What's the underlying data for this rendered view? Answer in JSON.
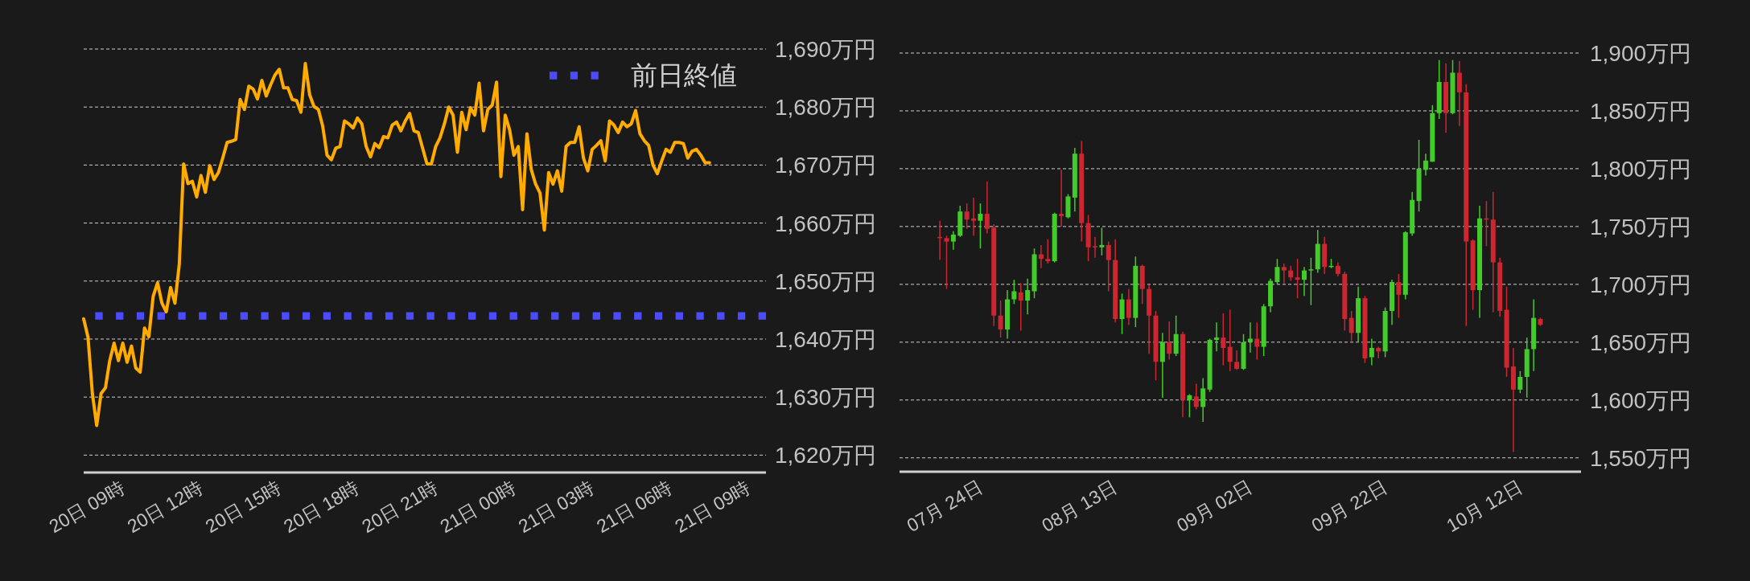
{
  "chart_data": [
    {
      "type": "line",
      "color": "#ffab00",
      "categories": [
        null,
        null,
        null,
        null,
        null,
        null,
        null,
        null,
        null,
        "20日 09時",
        null,
        null,
        null,
        null,
        null,
        null,
        null,
        null,
        null,
        null,
        null,
        null,
        null,
        null,
        null,
        null,
        null,
        "20日 12時",
        null,
        null,
        null,
        null,
        null,
        null,
        null,
        null,
        null,
        null,
        null,
        null,
        null,
        null,
        null,
        null,
        null,
        "20日 15時",
        null,
        null,
        null,
        null,
        null,
        null,
        null,
        null,
        null,
        null,
        null,
        null,
        null,
        null,
        null,
        null,
        null,
        "20日 18時",
        null,
        null,
        null,
        null,
        null,
        null,
        null,
        null,
        null,
        null,
        null,
        null,
        null,
        null,
        null,
        null,
        null,
        "20日 21時",
        null,
        null,
        null,
        null,
        null,
        null,
        null,
        null,
        null,
        null,
        null,
        null,
        null,
        null,
        null,
        null,
        null,
        "21日 00時",
        null,
        null,
        null,
        null,
        null,
        null,
        null,
        null,
        null,
        null,
        null,
        null,
        null,
        null,
        null,
        null,
        null,
        "21日 03時",
        null,
        null,
        null,
        null,
        null,
        null,
        null,
        null,
        null,
        null,
        null,
        null,
        null,
        null,
        null,
        null,
        null,
        "21日 06時",
        null,
        null,
        null,
        null,
        null,
        null,
        null,
        null,
        null,
        null,
        null,
        null,
        null,
        null,
        null,
        null,
        null,
        "21日 09時",
        null,
        null,
        null,
        null
      ],
      "values": [
        1643.5,
        1640.3,
        1630.6,
        1625.1,
        1630.6,
        1631.6,
        1636.3,
        1639.3,
        1636.3,
        1639.3,
        1636.0,
        1638.8,
        1635.0,
        1634.3,
        1641.9,
        1640.4,
        1647.4,
        1649.7,
        1646.2,
        1644.7,
        1648.9,
        1646.2,
        1652.9,
        1670.2,
        1666.8,
        1667.2,
        1664.5,
        1668.2,
        1665.3,
        1669.9,
        1667.5,
        1668.7,
        1671.2,
        1673.9,
        1674.1,
        1674.4,
        1681.3,
        1679.6,
        1683.6,
        1683.1,
        1681.4,
        1684.6,
        1681.9,
        1683.8,
        1685.5,
        1686.5,
        1683.3,
        1683.3,
        1681.3,
        1681.1,
        1679.1,
        1687.5,
        1682.1,
        1680.1,
        1679.6,
        1676.7,
        1671.7,
        1670.9,
        1672.9,
        1673.2,
        1677.6,
        1677.1,
        1676.4,
        1678.1,
        1677.1,
        1673.2,
        1671.4,
        1673.7,
        1673.0,
        1674.9,
        1674.7,
        1676.9,
        1677.4,
        1675.9,
        1677.6,
        1678.9,
        1675.9,
        1675.6,
        1672.9,
        1670.2,
        1670.2,
        1673.2,
        1674.7,
        1677.1,
        1680.0,
        1678.6,
        1672.2,
        1679.1,
        1676.1,
        1679.9,
        1678.6,
        1684.1,
        1675.9,
        1679.6,
        1680.3,
        1684.3,
        1668.0,
        1678.6,
        1676.1,
        1671.7,
        1673.2,
        1662.3,
        1675.4,
        1669.2,
        1666.7,
        1665.2,
        1658.8,
        1668.7,
        1666.7,
        1669.0,
        1665.5,
        1673.2,
        1673.9,
        1673.9,
        1676.6,
        1671.2,
        1669.0,
        1672.7,
        1673.4,
        1674.2,
        1670.7,
        1677.6,
        1676.9,
        1675.6,
        1677.4,
        1676.6,
        1677.1,
        1679.4,
        1675.4,
        1674.2,
        1673.4,
        1670.0,
        1668.5,
        1670.7,
        1672.7,
        1672.2,
        1673.9,
        1673.9,
        1673.7,
        1671.2,
        1672.4,
        1672.7,
        1671.7,
        1670.4,
        1670.4,
        null,
        null,
        null,
        null,
        null,
        null,
        null,
        null,
        null,
        null,
        null,
        null,
        null
      ],
      "ylim": [
        1617,
        1690
      ],
      "yticks": [
        {
          "value": 1620,
          "label": "1,620万円"
        },
        {
          "value": 1630,
          "label": "1,630万円"
        },
        {
          "value": 1640,
          "label": "1,640万円"
        },
        {
          "value": 1650,
          "label": "1,650万円"
        },
        {
          "value": 1660,
          "label": "1,660万円"
        },
        {
          "value": 1670,
          "label": "1,670万円"
        },
        {
          "value": 1680,
          "label": "1,680万円"
        },
        {
          "value": 1690,
          "label": "1,690万円"
        }
      ],
      "grid": "y",
      "ref_lines": [
        {
          "axis": "y",
          "value": 1644,
          "label": "前日終値",
          "color": "#4b4bff",
          "line_style": "dotted"
        }
      ],
      "legend": "top right"
    },
    {
      "type": "candlestick",
      "x": [
        "--07-18",
        "--07-19",
        "--07-20",
        "--07-21",
        "--07-22",
        "--07-23",
        "--07-24",
        "--07-25",
        "--07-26",
        "--07-27",
        "--07-28",
        "--07-29",
        "--07-30",
        "--07-31",
        "--08-01",
        "--08-02",
        "--08-03",
        "--08-04",
        "--08-05",
        "--08-06",
        "--08-07",
        "--08-08",
        "--08-09",
        "--08-10",
        "--08-11",
        "--08-12",
        "--08-13",
        "--08-14",
        "--08-15",
        "--08-16",
        "--08-17",
        "--08-18",
        "--08-19",
        "--08-20",
        "--08-21",
        "--08-22",
        "--08-23",
        "--08-24",
        "--08-25",
        "--08-26",
        "--08-27",
        "--08-28",
        "--08-29",
        "--08-30",
        "--08-31",
        "--09-01",
        "--09-02",
        "--09-03",
        "--09-04",
        "--09-05",
        "--09-06",
        "--09-07",
        "--09-08",
        "--09-09",
        "--09-10",
        "--09-11",
        "--09-12",
        "--09-13",
        "--09-14",
        "--09-15",
        "--09-16",
        "--09-17",
        "--09-18",
        "--09-19",
        "--09-20",
        "--09-21",
        "--09-22",
        "--09-23",
        "--09-24",
        "--09-25",
        "--09-26",
        "--09-27",
        "--09-28",
        "--09-29",
        "--09-30",
        "--10-01",
        "--10-02",
        "--10-03",
        "--10-04",
        "--10-05",
        "--10-06",
        "--10-07",
        "--10-08",
        "--10-09",
        "--10-10",
        "--10-11",
        "--10-12",
        "--10-13",
        "--10-14",
        "--10-15"
      ],
      "ohlc": [
        [
          1741,
          1755,
          1721,
          1740
        ],
        [
          1740,
          1742,
          1696,
          1737
        ],
        [
          1737,
          1746,
          1730,
          1743
        ],
        [
          1742,
          1768,
          1741,
          1763
        ],
        [
          1763,
          1770,
          1748,
          1756
        ],
        [
          1757,
          1775,
          1742,
          1755
        ],
        [
          1755,
          1770,
          1731,
          1761
        ],
        [
          1761,
          1789,
          1744,
          1748
        ],
        [
          1749,
          1752,
          1664,
          1673
        ],
        [
          1673,
          1686,
          1654,
          1661
        ],
        [
          1661,
          1695,
          1653,
          1687
        ],
        [
          1687,
          1704,
          1683,
          1694
        ],
        [
          1693,
          1701,
          1660,
          1686
        ],
        [
          1686,
          1705,
          1674,
          1695
        ],
        [
          1694,
          1731,
          1688,
          1726
        ],
        [
          1726,
          1734,
          1714,
          1722
        ],
        [
          1722,
          1739,
          1718,
          1720
        ],
        [
          1720,
          1762,
          1719,
          1761
        ],
        [
          1761,
          1799,
          1750,
          1759
        ],
        [
          1758,
          1778,
          1757,
          1776
        ],
        [
          1775,
          1818,
          1763,
          1813
        ],
        [
          1813,
          1824,
          1737,
          1753
        ],
        [
          1753,
          1760,
          1720,
          1732
        ],
        [
          1733,
          1741,
          1723,
          1732
        ],
        [
          1732,
          1749,
          1725,
          1734
        ],
        [
          1734,
          1737,
          1694,
          1721
        ],
        [
          1721,
          1739,
          1667,
          1670
        ],
        [
          1670,
          1692,
          1657,
          1687
        ],
        [
          1687,
          1696,
          1665,
          1671
        ],
        [
          1671,
          1724,
          1663,
          1716
        ],
        [
          1716,
          1717,
          1683,
          1696
        ],
        [
          1696,
          1700,
          1640,
          1673
        ],
        [
          1673,
          1677,
          1617,
          1633
        ],
        [
          1633,
          1658,
          1602,
          1650
        ],
        [
          1650,
          1668,
          1635,
          1640
        ],
        [
          1640,
          1673,
          1638,
          1657
        ],
        [
          1657,
          1659,
          1585,
          1600
        ],
        [
          1600,
          1605,
          1585,
          1604
        ],
        [
          1603,
          1614,
          1592,
          1594
        ],
        [
          1594,
          1619,
          1581,
          1610
        ],
        [
          1609,
          1653,
          1607,
          1652
        ],
        [
          1652,
          1667,
          1642,
          1654
        ],
        [
          1654,
          1675,
          1630,
          1645
        ],
        [
          1646,
          1678,
          1625,
          1633
        ],
        [
          1633,
          1643,
          1626,
          1627
        ],
        [
          1627,
          1657,
          1626,
          1650
        ],
        [
          1650,
          1667,
          1641,
          1653
        ],
        [
          1653,
          1667,
          1635,
          1646
        ],
        [
          1646,
          1683,
          1638,
          1681
        ],
        [
          1681,
          1705,
          1676,
          1703
        ],
        [
          1702,
          1722,
          1700,
          1715
        ],
        [
          1715,
          1718,
          1701,
          1712
        ],
        [
          1712,
          1716,
          1703,
          1706
        ],
        [
          1706,
          1722,
          1688,
          1704
        ],
        [
          1704,
          1715,
          1690,
          1712
        ],
        [
          1712,
          1723,
          1682,
          1713
        ],
        [
          1713,
          1747,
          1710,
          1735
        ],
        [
          1735,
          1741,
          1709,
          1715
        ],
        [
          1715,
          1722,
          1714,
          1716
        ],
        [
          1716,
          1719,
          1707,
          1709
        ],
        [
          1709,
          1711,
          1660,
          1670
        ],
        [
          1671,
          1677,
          1651,
          1658
        ],
        [
          1658,
          1698,
          1650,
          1688
        ],
        [
          1688,
          1690,
          1632,
          1636
        ],
        [
          1637,
          1653,
          1630,
          1645
        ],
        [
          1645,
          1646,
          1636,
          1642
        ],
        [
          1642,
          1680,
          1637,
          1677
        ],
        [
          1677,
          1704,
          1665,
          1702
        ],
        [
          1702,
          1709,
          1671,
          1691
        ],
        [
          1691,
          1746,
          1687,
          1745
        ],
        [
          1744,
          1780,
          1742,
          1773
        ],
        [
          1772,
          1825,
          1763,
          1800
        ],
        [
          1799,
          1813,
          1794,
          1807
        ],
        [
          1806,
          1855,
          1806,
          1848
        ],
        [
          1848,
          1894,
          1843,
          1875
        ],
        [
          1875,
          1891,
          1831,
          1848
        ],
        [
          1848,
          1894,
          1847,
          1883
        ],
        [
          1883,
          1893,
          1837,
          1866
        ],
        [
          1866,
          1873,
          1664,
          1737
        ],
        [
          1738,
          1739,
          1678,
          1695
        ],
        [
          1695,
          1768,
          1671,
          1757
        ],
        [
          1757,
          1772,
          1733,
          1756
        ],
        [
          1756,
          1780,
          1676,
          1719
        ],
        [
          1719,
          1723,
          1672,
          1677
        ],
        [
          1678,
          1698,
          1620,
          1628
        ],
        [
          1629,
          1645,
          1555,
          1609
        ],
        [
          1609,
          1625,
          1606,
          1620
        ],
        [
          1620,
          1654,
          1602,
          1644
        ],
        [
          1644,
          1687,
          1625,
          1671
        ],
        [
          1670,
          1671,
          1664,
          1665
        ]
      ],
      "colors": [
        "#cc2631",
        "#cc2631",
        "#42cc2a",
        "#42cc2a",
        "#cc2631",
        "#cc2631",
        "#42cc2a",
        "#cc2631",
        "#cc2631",
        "#cc2631",
        "#42cc2a",
        "#42cc2a",
        "#cc2631",
        "#42cc2a",
        "#42cc2a",
        "#cc2631",
        "#cc2631",
        "#42cc2a",
        "#cc2631",
        "#42cc2a",
        "#42cc2a",
        "#cc2631",
        "#cc2631",
        "#cc2631",
        "#42cc2a",
        "#cc2631",
        "#cc2631",
        "#42cc2a",
        "#cc2631",
        "#42cc2a",
        "#cc2631",
        "#cc2631",
        "#cc2631",
        "#42cc2a",
        "#cc2631",
        "#42cc2a",
        "#cc2631",
        "#42cc2a",
        "#cc2631",
        "#42cc2a",
        "#42cc2a",
        "#42cc2a",
        "#cc2631",
        "#cc2631",
        "#cc2631",
        "#42cc2a",
        "#42cc2a",
        "#cc2631",
        "#42cc2a",
        "#42cc2a",
        "#42cc2a",
        "#cc2631",
        "#cc2631",
        "#cc2631",
        "#42cc2a",
        "#42cc2a",
        "#42cc2a",
        "#cc2631",
        "#42cc2a",
        "#cc2631",
        "#cc2631",
        "#cc2631",
        "#42cc2a",
        "#cc2631",
        "#42cc2a",
        "#cc2631",
        "#42cc2a",
        "#42cc2a",
        "#cc2631",
        "#42cc2a",
        "#42cc2a",
        "#42cc2a",
        "#42cc2a",
        "#42cc2a",
        "#42cc2a",
        "#cc2631",
        "#42cc2a",
        "#cc2631",
        "#cc2631",
        "#cc2631",
        "#42cc2a",
        "#cc2631",
        "#cc2631",
        "#cc2631",
        "#cc2631",
        "#cc2631",
        "#42cc2a",
        "#42cc2a",
        "#42cc2a",
        "#cc2631"
      ],
      "xlim": [
        "--07-12",
        "--10-21"
      ],
      "xticks": [
        {
          "value": "--07-24",
          "label": "07月 24日"
        },
        {
          "value": "--08-13",
          "label": "08月 13日"
        },
        {
          "value": "--09-02",
          "label": "09月 02日"
        },
        {
          "value": "--09-22",
          "label": "09月 22日"
        },
        {
          "value": "--10-12",
          "label": "10月 12日"
        }
      ],
      "ylim": [
        1538,
        1900
      ],
      "yticks": [
        {
          "value": 1550,
          "label": "1,550万円"
        },
        {
          "value": 1600,
          "label": "1,600万円"
        },
        {
          "value": 1650,
          "label": "1,650万円"
        },
        {
          "value": 1700,
          "label": "1,700万円"
        },
        {
          "value": 1750,
          "label": "1,750万円"
        },
        {
          "value": 1800,
          "label": "1,800万円"
        },
        {
          "value": 1850,
          "label": "1,850万円"
        },
        {
          "value": 1900,
          "label": "1,900万円"
        }
      ],
      "grid": "y"
    }
  ]
}
